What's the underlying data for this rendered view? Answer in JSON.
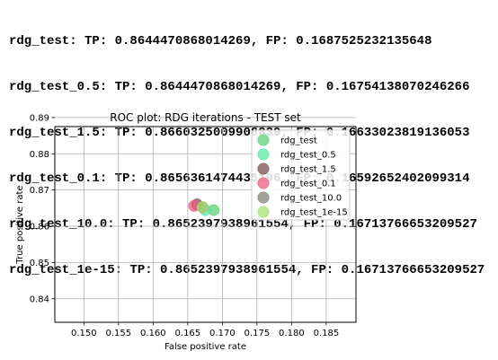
{
  "output_lines": [
    "rdg_test: TP: 0.8644470868014269, FP: 0.1687525232135648",
    "rdg_test_0.5: TP: 0.8644470868014269, FP: 0.16754138070246266",
    "rdg_test_1.5: TP: 0.8660325009908839, FP: 0.16633023819136053",
    "rdg_test_0.1: TP: 0.8656361474435196, FP: 0.16592652402099314",
    "rdg_test_10.0: TP: 0.8652397938961554, FP: 0.16713766653209527",
    "rdg_test_1e-15: TP: 0.8652397938961554, FP: 0.16713766653209527"
  ],
  "chart_data": {
    "type": "scatter",
    "title": "ROC plot: RDG iterations -  TEST set",
    "xlabel": "False positive rate",
    "ylabel": "True positive rate",
    "xlim": [
      0.1458,
      0.1893
    ],
    "ylim": [
      0.8335,
      0.8875
    ],
    "x_ticks": [
      0.15,
      0.155,
      0.16,
      0.165,
      0.17,
      0.175,
      0.18,
      0.185
    ],
    "x_tick_labels": [
      "0.150",
      "0.155",
      "0.160",
      "0.165",
      "0.170",
      "0.175",
      "0.180",
      "0.185"
    ],
    "y_ticks": [
      0.84,
      0.85,
      0.86,
      0.87,
      0.88,
      0.89
    ],
    "y_tick_labels": [
      "0.84",
      "0.85",
      "0.86",
      "0.87",
      "0.88",
      "0.89"
    ],
    "grid": true,
    "legend_position": "top-right",
    "series": [
      {
        "name": "rdg_test",
        "color": "#5dd27a",
        "x": [
          0.1687525232135648
        ],
        "y": [
          0.8644470868014269
        ]
      },
      {
        "name": "rdg_test_0.5",
        "color": "#5de6a6",
        "x": [
          0.16754138070246266
        ],
        "y": [
          0.8644470868014269
        ]
      },
      {
        "name": "rdg_test_1.5",
        "color": "#7a5252",
        "x": [
          0.16633023819136053
        ],
        "y": [
          0.8660325009908839
        ]
      },
      {
        "name": "rdg_test_0.1",
        "color": "#ea5f7f",
        "x": [
          0.16592652402099314
        ],
        "y": [
          0.8656361474435196
        ]
      },
      {
        "name": "rdg_test_10.0",
        "color": "#808471",
        "x": [
          0.16713766653209527
        ],
        "y": [
          0.8652397938961554
        ]
      },
      {
        "name": "rdg_test_1e-15",
        "color": "#a9e06e",
        "x": [
          0.16713766653209527
        ],
        "y": [
          0.8652397938961554
        ]
      }
    ]
  }
}
